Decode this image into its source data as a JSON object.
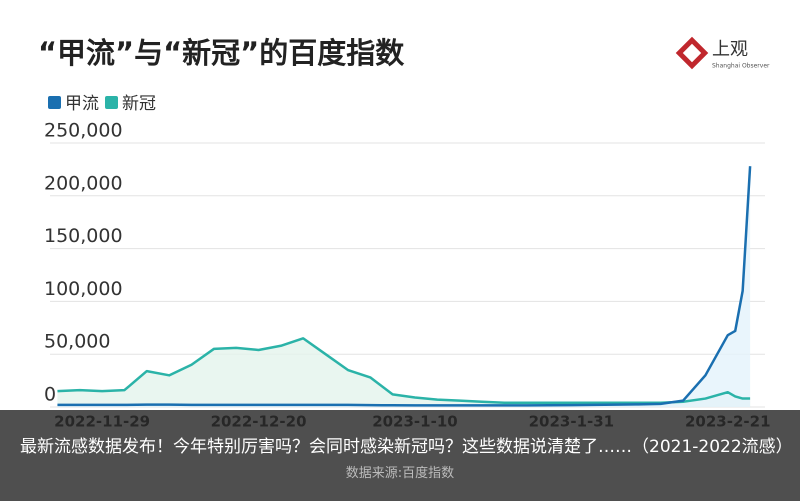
{
  "chart_data": {
    "type": "line",
    "title": "“甲流”与“新冠”的百度指数",
    "x": [
      "2022-11-23",
      "2022-11-26",
      "2022-11-29",
      "2022-12-2",
      "2022-12-5",
      "2022-12-8",
      "2022-12-11",
      "2022-12-14",
      "2022-12-17",
      "2022-12-20",
      "2022-12-23",
      "2022-12-26",
      "2022-12-29",
      "2023-1-1",
      "2023-1-4",
      "2023-1-7",
      "2023-1-10",
      "2023-1-13",
      "2023-1-16",
      "2023-1-19",
      "2023-1-22",
      "2023-1-25",
      "2023-1-28",
      "2023-1-31",
      "2023-2-3",
      "2023-2-6",
      "2023-2-9",
      "2023-2-12",
      "2023-2-15",
      "2023-2-18",
      "2023-2-21",
      "2023-2-22",
      "2023-2-23",
      "2023-2-24"
    ],
    "series": [
      {
        "name": "甲流",
        "color": "#1a6fb0",
        "fill": "#e4f2fb",
        "values": [
          2000,
          2000,
          2000,
          2000,
          2200,
          2200,
          2000,
          2000,
          2000,
          2000,
          2000,
          2000,
          2000,
          2000,
          1800,
          1600,
          1500,
          1500,
          1500,
          1500,
          1500,
          1500,
          1600,
          1800,
          2000,
          2200,
          2500,
          3000,
          6000,
          30000,
          68000,
          72000,
          110000,
          228000
        ]
      },
      {
        "name": "新冠",
        "color": "#2bb3a8",
        "fill": "#e3f4ec",
        "values": [
          15000,
          16000,
          15000,
          16000,
          34000,
          30000,
          40000,
          55000,
          56000,
          54000,
          58000,
          65000,
          50000,
          35000,
          28000,
          12000,
          9000,
          7000,
          6000,
          5000,
          4000,
          4000,
          4000,
          4000,
          4000,
          4000,
          4000,
          4000,
          5000,
          8000,
          14000,
          10000,
          8000,
          8000
        ]
      }
    ],
    "xlim": [
      "2022-11-22",
      "2023-2-26"
    ],
    "xticks": [
      "2022-11-29",
      "2022-12-20",
      "2023-1-10",
      "2023-1-31",
      "2023-2-21"
    ],
    "ylim": [
      0,
      250000
    ],
    "yticks": [
      0,
      {
        "value": 50000,
        "label": "50,000"
      },
      {
        "value": 100000,
        "label": "100,000"
      },
      {
        "value": 150000,
        "label": "150,000"
      },
      {
        "value": 200000,
        "label": "200,000"
      },
      {
        "value": 250000,
        "label": "250,000"
      }
    ],
    "grid": true,
    "legend": "top-left"
  },
  "logo": {
    "name": "上观",
    "subtitle": "Shanghai Observer"
  },
  "caption": "最新流感数据发布！今年特别厉害吗？会同时感染新冠吗？这些数据说清楚了……（2021-2022流感）",
  "source": "数据来源:百度指数"
}
